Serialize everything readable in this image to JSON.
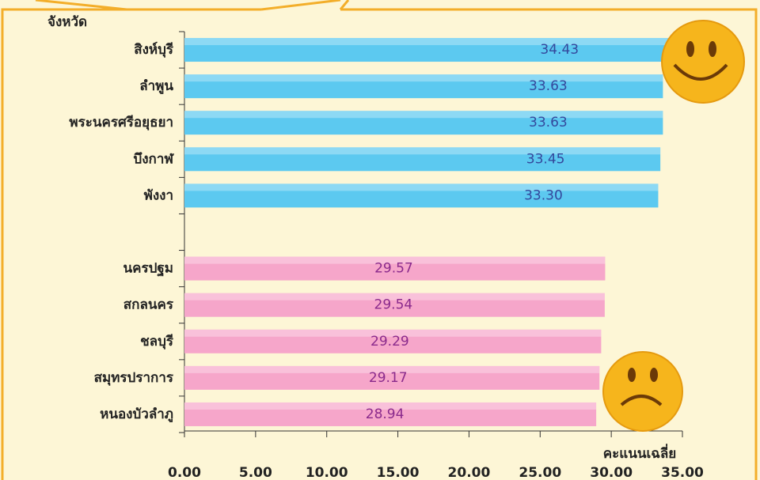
{
  "chart_data": {
    "type": "bar",
    "orientation": "horizontal",
    "y_axis_label": "จังหวัด",
    "x_axis_label": "คะแนนเฉลี่ย",
    "categories": [
      "สิงห์บุรี",
      "ลำพูน",
      "พระนครศรีอยุธยา",
      "บึงกาฬ",
      "พังงา",
      null,
      "นครปฐม",
      "สกลนคร",
      "ชลบุรี",
      "สมุทรปราการ",
      "หนองบัวลำภู"
    ],
    "values": [
      34.43,
      33.63,
      33.63,
      33.45,
      33.3,
      null,
      29.57,
      29.54,
      29.29,
      29.17,
      28.94
    ],
    "value_labels": [
      "34.43",
      "33.63",
      "33.63",
      "33.45",
      "33.30",
      null,
      "29.57",
      "29.54",
      "29.29",
      "29.17",
      "28.94"
    ],
    "colors": [
      "#5cc9f0",
      "#5cc9f0",
      "#5cc9f0",
      "#5cc9f0",
      "#5cc9f0",
      null,
      "#f6a6ca",
      "#f6a6ca",
      "#f6a6ca",
      "#f6a6ca",
      "#f6a6ca"
    ],
    "label_colors": [
      "#34489c",
      "#34489c",
      "#34489c",
      "#34489c",
      "#34489c",
      null,
      "#8a2a8c",
      "#8a2a8c",
      "#8a2a8c",
      "#8a2a8c",
      "#8a2a8c"
    ],
    "xlim": [
      0,
      35
    ],
    "xticks": [
      {
        "value": 0,
        "label": "0.00"
      },
      {
        "value": 5,
        "label": "5.00"
      },
      {
        "value": 10,
        "label": "10.00"
      },
      {
        "value": 15,
        "label": "15.00"
      },
      {
        "value": 20,
        "label": "20.00"
      },
      {
        "value": 25,
        "label": "25.00"
      },
      {
        "value": 30,
        "label": "30.00"
      },
      {
        "value": 35,
        "label": "35.00"
      }
    ]
  }
}
